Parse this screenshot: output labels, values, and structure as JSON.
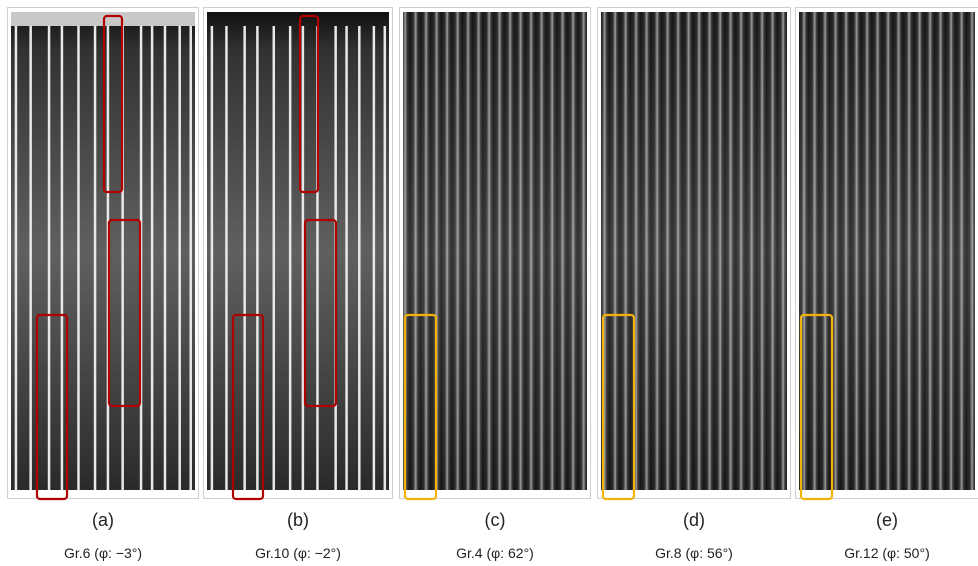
{
  "panels": [
    {
      "label": "(a)",
      "caption": "Gr.6 (φ: −3°)"
    },
    {
      "label": "(b)",
      "caption": "Gr.10 (φ: −2°)"
    },
    {
      "label": "(c)",
      "caption": "Gr.4 (φ: 62°)"
    },
    {
      "label": "(d)",
      "caption": "Gr.8 (φ: 56°)"
    },
    {
      "label": "(e)",
      "caption": "Gr.12 (φ: 50°)"
    }
  ]
}
